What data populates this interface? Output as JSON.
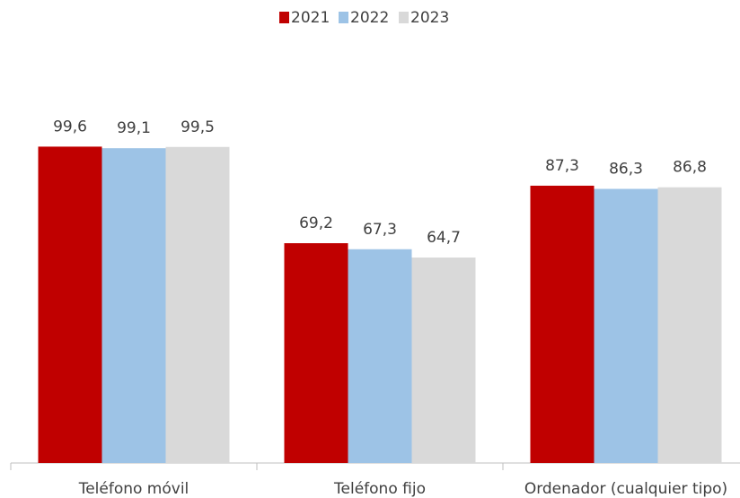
{
  "chart_data": {
    "type": "bar",
    "categories": [
      "Teléfono móvil",
      "Teléfono fijo",
      "Ordenador (cualquier tipo)"
    ],
    "series": [
      {
        "name": "2021",
        "color": "#c00000",
        "values": [
          99.6,
          69.2,
          87.3
        ],
        "value_labels": [
          "99,6",
          "69,2",
          "87,3"
        ]
      },
      {
        "name": "2022",
        "color": "#9dc3e6",
        "values": [
          99.1,
          67.3,
          86.3
        ],
        "value_labels": [
          "99,1",
          "67,3",
          "86,3"
        ]
      },
      {
        "name": "2023",
        "color": "#d9d9d9",
        "values": [
          99.5,
          64.7,
          86.8
        ],
        "value_labels": [
          "99,5",
          "64,7",
          "86,8"
        ]
      }
    ],
    "ylim": [
      0,
      100
    ],
    "legend": "top"
  }
}
